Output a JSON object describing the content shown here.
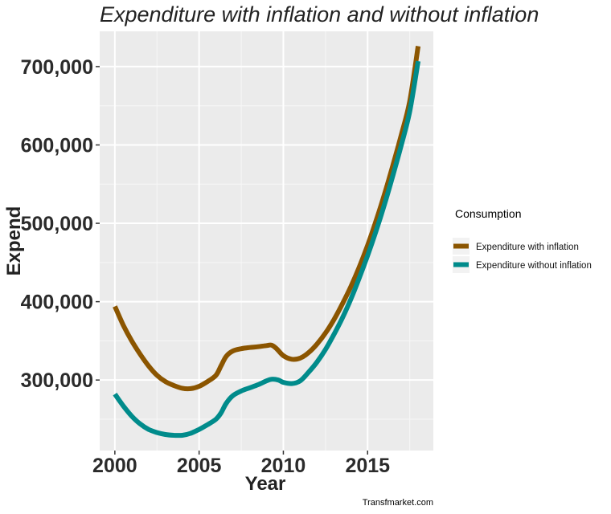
{
  "chart_data": {
    "type": "line",
    "title": "Expenditure with inflation and without inflation",
    "xlabel": "Year",
    "ylabel": "Expend",
    "xlim": [
      1999.1,
      2018.9
    ],
    "ylim": [
      210000,
      745000
    ],
    "x_ticks": [
      2000,
      2005,
      2010,
      2015
    ],
    "x_tick_labels": [
      "2000",
      "2005",
      "2010",
      "2015"
    ],
    "y_ticks": [
      300000,
      400000,
      500000,
      600000,
      700000
    ],
    "y_tick_labels": [
      "300,000",
      "400,000",
      "500,000",
      "600,000",
      "700,000"
    ],
    "grid": true,
    "legend": {
      "title": "Consumption",
      "position": "right"
    },
    "caption": "Transfmarket.com",
    "series": [
      {
        "name": "Expenditure with inflation",
        "color": "#8B5500",
        "points": [
          [
            2000,
            394000
          ],
          [
            2000.5,
            370000
          ],
          [
            2001,
            350000
          ],
          [
            2001.5,
            333000
          ],
          [
            2002,
            318000
          ],
          [
            2002.5,
            306000
          ],
          [
            2003,
            298000
          ],
          [
            2003.5,
            293000
          ],
          [
            2004,
            289500
          ],
          [
            2004.5,
            289000
          ],
          [
            2005,
            292000
          ],
          [
            2005.5,
            298000
          ],
          [
            2006,
            306000
          ],
          [
            2006.3,
            318000
          ],
          [
            2006.6,
            330000
          ],
          [
            2007,
            337000
          ],
          [
            2007.5,
            340000
          ],
          [
            2008,
            341500
          ],
          [
            2008.5,
            342500
          ],
          [
            2009,
            344000
          ],
          [
            2009.3,
            344500
          ],
          [
            2009.6,
            340000
          ],
          [
            2010,
            331000
          ],
          [
            2010.5,
            326500
          ],
          [
            2011,
            328000
          ],
          [
            2011.5,
            335000
          ],
          [
            2012,
            346000
          ],
          [
            2012.5,
            360000
          ],
          [
            2013,
            377000
          ],
          [
            2013.5,
            397000
          ],
          [
            2014,
            419000
          ],
          [
            2014.5,
            444000
          ],
          [
            2015,
            472000
          ],
          [
            2015.5,
            503000
          ],
          [
            2016,
            537000
          ],
          [
            2016.5,
            574000
          ],
          [
            2017,
            613000
          ],
          [
            2017.5,
            656000
          ],
          [
            2018,
            726000
          ]
        ]
      },
      {
        "name": "Expenditure without inflation",
        "color": "#008B8B",
        "points": [
          [
            2000,
            282000
          ],
          [
            2000.5,
            267000
          ],
          [
            2001,
            254000
          ],
          [
            2001.5,
            244000
          ],
          [
            2002,
            237000
          ],
          [
            2002.5,
            233000
          ],
          [
            2003,
            230500
          ],
          [
            2003.5,
            229500
          ],
          [
            2004,
            229500
          ],
          [
            2004.5,
            232000
          ],
          [
            2005,
            237000
          ],
          [
            2005.5,
            243000
          ],
          [
            2006,
            250000
          ],
          [
            2006.3,
            258000
          ],
          [
            2006.6,
            270000
          ],
          [
            2007,
            280000
          ],
          [
            2007.5,
            286000
          ],
          [
            2008,
            290000
          ],
          [
            2008.5,
            294000
          ],
          [
            2009,
            299000
          ],
          [
            2009.3,
            301000
          ],
          [
            2009.7,
            300000
          ],
          [
            2010,
            297000
          ],
          [
            2010.5,
            295500
          ],
          [
            2011,
            299000
          ],
          [
            2011.5,
            310000
          ],
          [
            2012,
            323000
          ],
          [
            2012.5,
            339000
          ],
          [
            2013,
            358000
          ],
          [
            2013.5,
            379000
          ],
          [
            2014,
            403000
          ],
          [
            2014.5,
            430000
          ],
          [
            2015,
            459000
          ],
          [
            2015.5,
            490000
          ],
          [
            2016,
            524000
          ],
          [
            2016.5,
            561000
          ],
          [
            2017,
            600000
          ],
          [
            2017.5,
            643000
          ],
          [
            2018,
            707000
          ]
        ]
      }
    ]
  }
}
